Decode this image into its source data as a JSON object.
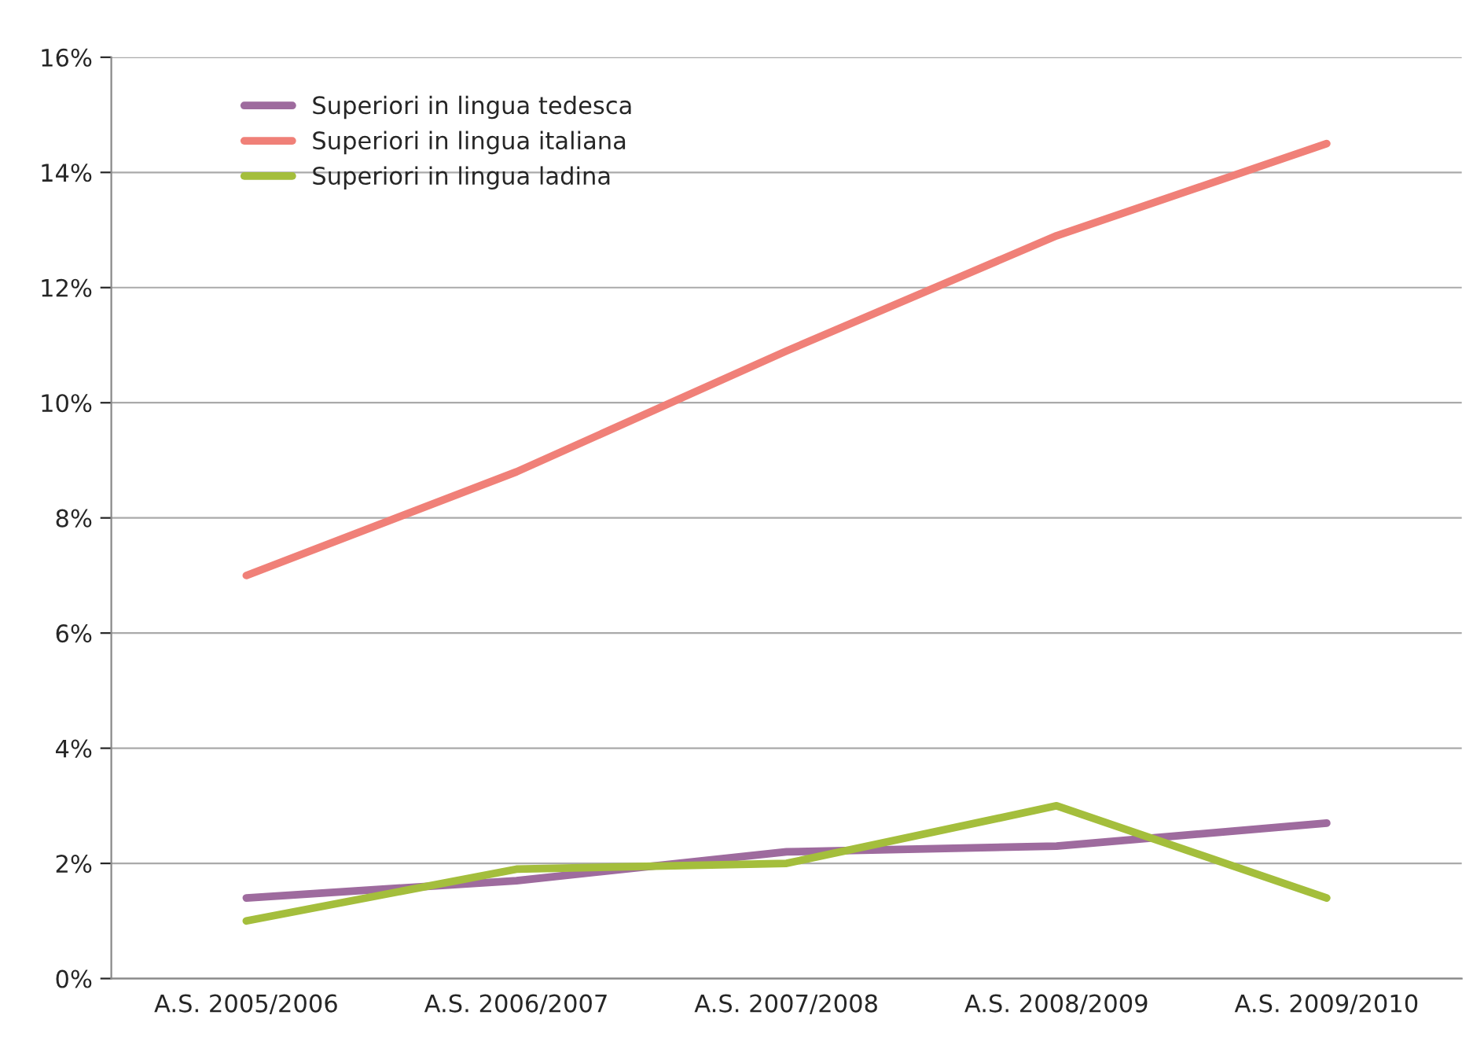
{
  "chart_data": {
    "type": "line",
    "categories": [
      "A.S. 2005/2006",
      "A.S. 2006/2007",
      "A.S. 2007/2008",
      "A.S. 2008/2009",
      "A.S. 2009/2010"
    ],
    "series": [
      {
        "name": "Superiori in lingua tedesca",
        "color": "#9e6b9e",
        "values": [
          1.4,
          1.7,
          2.2,
          2.3,
          2.7
        ]
      },
      {
        "name": "Superiori in lingua italiana",
        "color": "#f08078",
        "values": [
          7.0,
          8.8,
          10.9,
          12.9,
          14.5
        ]
      },
      {
        "name": "Superiori in lingua ladina",
        "color": "#a4be3c",
        "values": [
          1.0,
          1.9,
          2.0,
          3.0,
          1.4
        ]
      }
    ],
    "ylim": [
      0,
      16
    ],
    "yticks": [
      {
        "value": 0,
        "label": "0%"
      },
      {
        "value": 2,
        "label": "2%"
      },
      {
        "value": 4,
        "label": "4%"
      },
      {
        "value": 6,
        "label": "6%"
      },
      {
        "value": 8,
        "label": "8%"
      },
      {
        "value": 10,
        "label": "10%"
      },
      {
        "value": 12,
        "label": "12%"
      },
      {
        "value": 14,
        "label": "14%"
      },
      {
        "value": 16,
        "label": "16%"
      }
    ],
    "grid": "y",
    "legend": "top left",
    "marker": "none",
    "line_style": "solid"
  }
}
